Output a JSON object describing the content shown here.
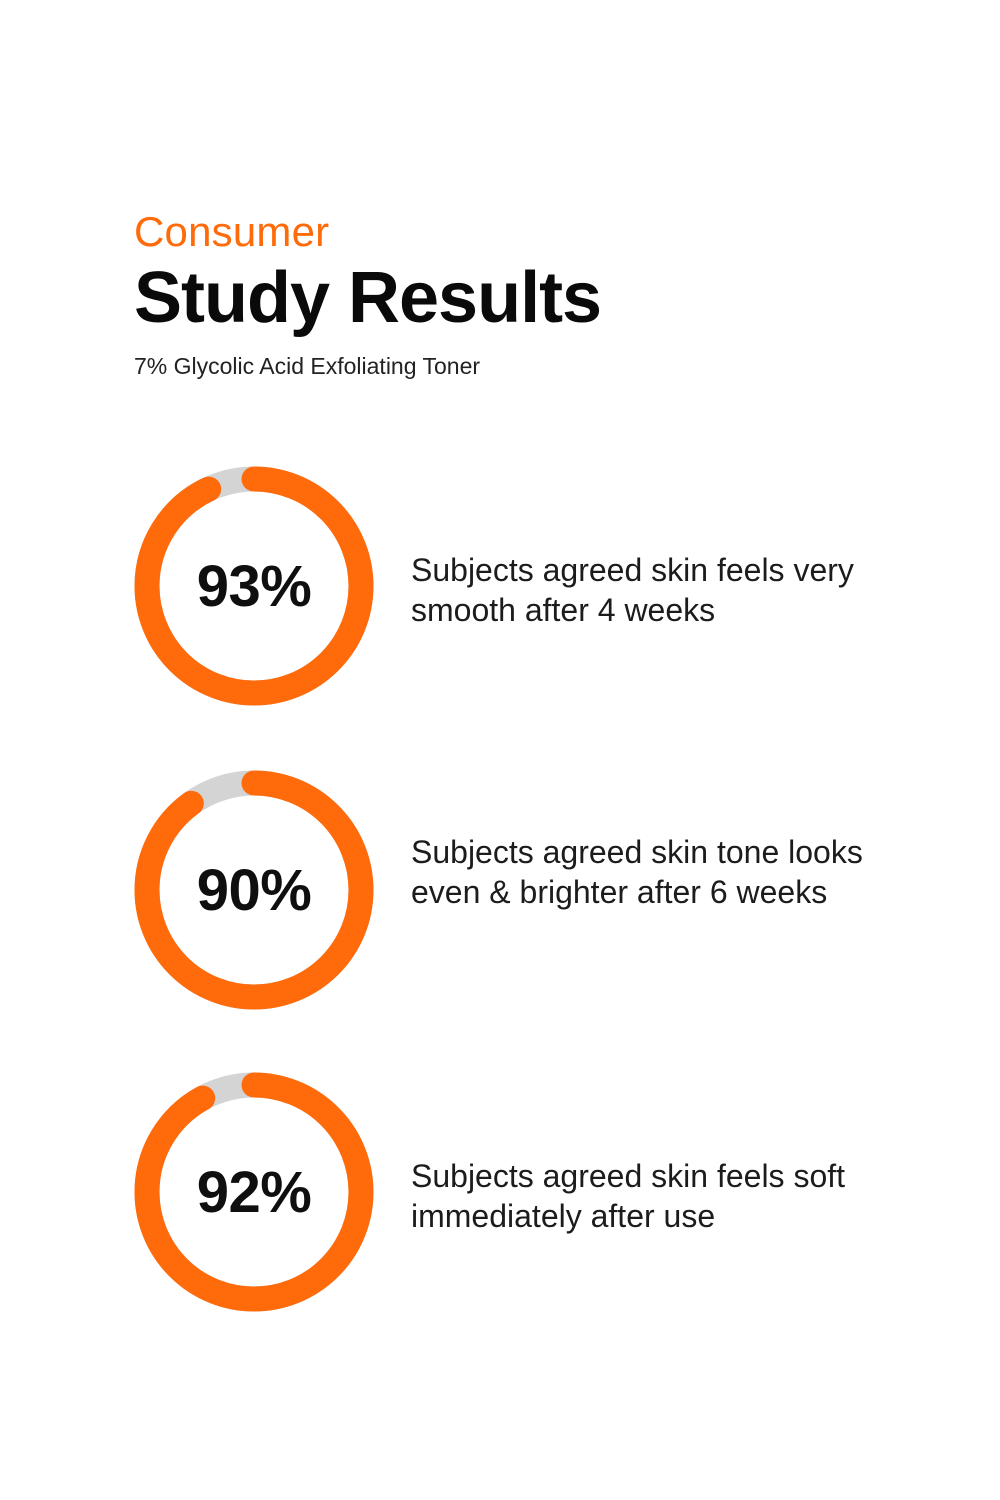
{
  "colors": {
    "accent": "#ff6b0b",
    "track": "#d4d4d4",
    "text": "#111111"
  },
  "header": {
    "eyebrow": "Consumer",
    "title": "Study Results",
    "subtitle": "7% Glycolic Acid Exfoliating Toner"
  },
  "chart_data": {
    "type": "donut",
    "title": "Study Results",
    "subtitle": "7% Glycolic Acid Exfoliating Toner",
    "unit": "%",
    "series": [
      {
        "value": 93,
        "label": "93%",
        "description": "Subjects agreed skin feels very smooth after 4 weeks"
      },
      {
        "value": 90,
        "label": "90%",
        "description": "Subjects agreed skin tone looks even & brighter after 6 weeks"
      },
      {
        "value": 92,
        "label": "92%",
        "description": "Subjects agreed skin feels soft immediately after use"
      }
    ]
  }
}
